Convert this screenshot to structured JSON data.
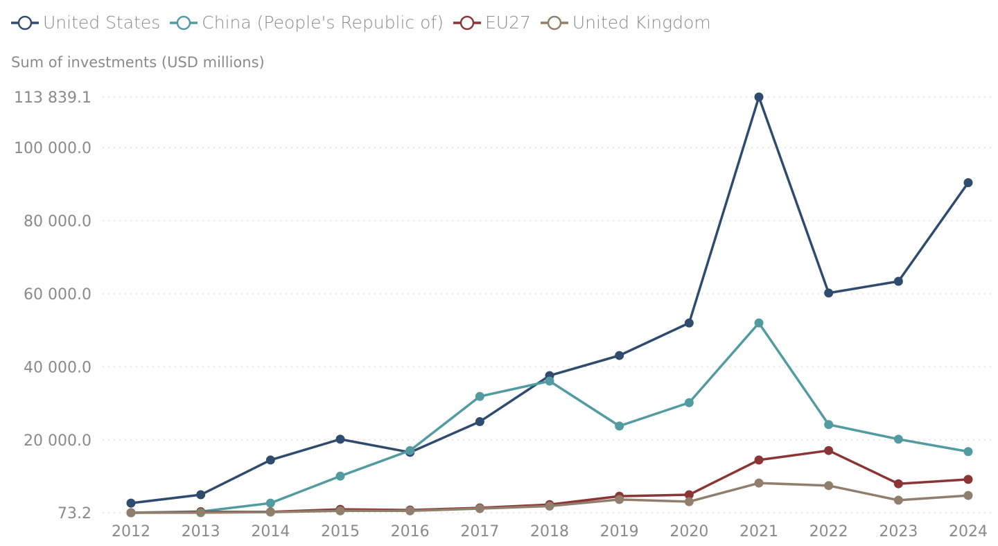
{
  "chart_data": {
    "type": "line",
    "ylabel": "Sum of investments (USD millions)",
    "categories": [
      "2012",
      "2013",
      "2014",
      "2015",
      "2016",
      "2017",
      "2018",
      "2019",
      "2020",
      "2021",
      "2022",
      "2023",
      "2024"
    ],
    "yticks": [
      73.2,
      20000,
      40000,
      60000,
      80000,
      100000,
      113839.1
    ],
    "ytick_labels": [
      "73.2",
      "20 000.0",
      "40 000.0",
      "60 000.0",
      "80 000.0",
      "100 000.0",
      "113 839.1"
    ],
    "ylim": [
      73.2,
      113839.1
    ],
    "grid": "horizontal dotted",
    "legend": "top-left",
    "series": [
      {
        "name": "United States",
        "color": "#2f4b6e",
        "values": [
          2700,
          5000,
          14500,
          20200,
          16600,
          25000,
          37600,
          43100,
          52000,
          113839.1,
          60200,
          63400,
          90400
        ]
      },
      {
        "name": "China (People's Republic of)",
        "color": "#529ba0",
        "values": [
          100,
          400,
          2700,
          10100,
          17100,
          31900,
          36100,
          23800,
          30200,
          52000,
          24200,
          20200,
          16800
        ]
      },
      {
        "name": "EU27",
        "color": "#8b3535",
        "values": [
          73.2,
          300,
          300,
          1000,
          800,
          1400,
          2300,
          4600,
          5000,
          14500,
          17100,
          8000,
          9200
        ]
      },
      {
        "name": "United Kingdom",
        "color": "#8f7f6c",
        "values": [
          73.2,
          100,
          250,
          600,
          600,
          1200,
          1900,
          3700,
          3100,
          8200,
          7500,
          3500,
          4800
        ]
      }
    ]
  }
}
